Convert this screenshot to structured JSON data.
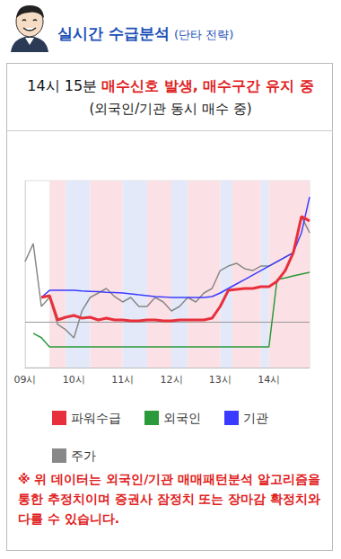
{
  "header": {
    "title": "실시간 수급분석",
    "subtitle": "(단타 전략)"
  },
  "signal": {
    "time": "14시 15분",
    "message": "매수신호 발생, 매수구간 유지 중",
    "detail": "(외국인/기관 동시 매수 중)"
  },
  "note": "※ 위 데이터는 외국인/기관 매매패턴분석 알고리즘을 통한 추정치이며 증권사 잠정치 또는 장마감 확정치와 다를 수 있습니다.",
  "chart_data": {
    "type": "line",
    "x": [
      0,
      10,
      20,
      30,
      40,
      50,
      60,
      70,
      80,
      90,
      100,
      110,
      120,
      130,
      140,
      150,
      160,
      170,
      180,
      190,
      200,
      210,
      220,
      230,
      240,
      250,
      260,
      270,
      280,
      290,
      300,
      310,
      320,
      330,
      340,
      350
    ],
    "xlim": [
      0,
      350
    ],
    "xticks": [
      {
        "value": 0,
        "label": "09시"
      },
      {
        "value": 60,
        "label": "10시"
      },
      {
        "value": 120,
        "label": "11시"
      },
      {
        "value": 180,
        "label": "12시"
      },
      {
        "value": 240,
        "label": "13시"
      },
      {
        "value": 300,
        "label": "14시"
      }
    ],
    "ylim": [
      0,
      100
    ],
    "yticks": [],
    "tick_labels": "x",
    "grid": false,
    "legend": "bottom",
    "baseline": 24.5,
    "bands": [
      {
        "start": 30,
        "end": 50,
        "color": "#fbe1e5"
      },
      {
        "start": 50,
        "end": 80,
        "color": "#e3e9f8"
      },
      {
        "start": 80,
        "end": 120,
        "color": "#fbe1e5"
      },
      {
        "start": 120,
        "end": 150,
        "color": "#e3e9f8"
      },
      {
        "start": 150,
        "end": 180,
        "color": "#fbe1e5"
      },
      {
        "start": 180,
        "end": 200,
        "color": "#e3e9f8"
      },
      {
        "start": 200,
        "end": 240,
        "color": "#fbe1e5"
      },
      {
        "start": 240,
        "end": 255,
        "color": "#e3e9f8"
      },
      {
        "start": 255,
        "end": 290,
        "color": "#fbe1e5"
      },
      {
        "start": 290,
        "end": 300,
        "color": "#e3e9f8"
      },
      {
        "start": 300,
        "end": 350,
        "color": "#fbe1e5"
      }
    ],
    "series": [
      {
        "name": "파워수급",
        "color": "#e8303c",
        "values": [
          null,
          null,
          37.5,
          38.5,
          25.5,
          26.9,
          27.9,
          26.4,
          26.9,
          25.5,
          26.4,
          25.5,
          25.5,
          25.0,
          25.0,
          25.5,
          25.5,
          25.0,
          25.0,
          25.5,
          25.5,
          25.5,
          25.5,
          26.4,
          32.7,
          41.3,
          41.8,
          42.3,
          42.3,
          43.3,
          43.3,
          46.2,
          51.9,
          61.5,
          80.8,
          78.4
        ]
      },
      {
        "name": "외국인",
        "color": "#2a9a3a",
        "values": [
          null,
          18.3,
          16.0,
          11.1,
          11.1,
          11.1,
          11.1,
          11.1,
          11.1,
          11.1,
          11.1,
          11.1,
          11.1,
          11.1,
          11.1,
          11.1,
          11.1,
          11.1,
          11.1,
          11.1,
          11.1,
          11.1,
          11.1,
          11.1,
          11.1,
          11.1,
          11.1,
          11.1,
          11.1,
          11.1,
          11.1,
          47.1,
          48.0,
          49.0,
          50.0,
          51.0
        ]
      },
      {
        "name": "기관",
        "color": "#3b3bff",
        "values": [
          null,
          null,
          37.5,
          41.3,
          41.3,
          41.3,
          41.3,
          41.0,
          40.8,
          40.6,
          40.3,
          40.1,
          39.9,
          39.4,
          38.9,
          38.5,
          38.0,
          37.8,
          37.5,
          37.5,
          37.5,
          37.5,
          37.5,
          38.0,
          39.9,
          42.3,
          44.7,
          47.1,
          49.5,
          51.9,
          54.3,
          56.7,
          59.1,
          61.5,
          72.1,
          91.3
        ]
      },
      {
        "name": "주가",
        "color": "#888888",
        "values": [
          56.7,
          66.3,
          32.7,
          37.5,
          23.1,
          20.2,
          15.9,
          30.3,
          37.5,
          39.9,
          42.3,
          38.0,
          35.1,
          37.5,
          32.7,
          32.7,
          37.5,
          35.1,
          30.3,
          32.7,
          37.5,
          35.1,
          39.9,
          42.3,
          51.9,
          54.3,
          55.8,
          52.9,
          51.9,
          54.3,
          54.3,
          56.7,
          59.1,
          61.5,
          80.8,
          72.1
        ]
      }
    ]
  }
}
